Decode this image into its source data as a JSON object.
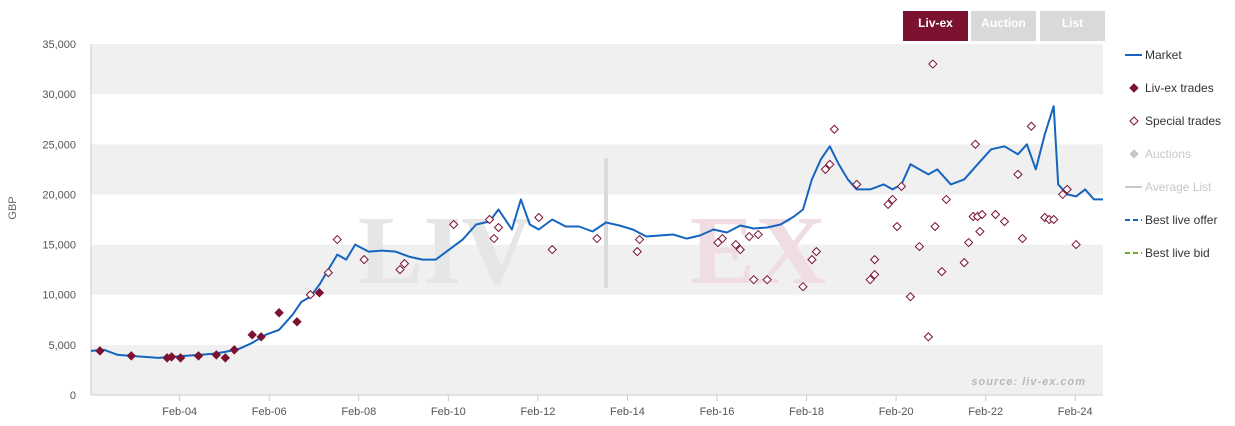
{
  "tabs": [
    {
      "label": "Liv-ex",
      "active": true
    },
    {
      "label": "Auction",
      "active": false
    },
    {
      "label": "List",
      "active": false
    }
  ],
  "watermark": {
    "left": "LIV",
    "right": "EX"
  },
  "source_text": "source: liv-ex.com",
  "colors": {
    "market": "#1565c0",
    "livex_trades": "#7a1230",
    "special_trades": "#7a1230",
    "auctions": "#c8c8c8",
    "average_list": "#c8c8c8",
    "best_live_offer": "#1565c0",
    "best_live_bid": "#6ab023",
    "tab_active": "#7a1230",
    "tab_inactive": "#d9d9d9"
  },
  "chart_data": {
    "type": "line",
    "ylabel": "GBP",
    "y_ticks": [
      0,
      5000,
      10000,
      15000,
      20000,
      25000,
      30000,
      35000
    ],
    "y_tick_labels": [
      "0",
      "5,000",
      "10,000",
      "15,000",
      "20,000",
      "25,000",
      "30,000",
      "35,000"
    ],
    "ylim": [
      0,
      35000
    ],
    "xlim": [
      2002.1,
      2024.7
    ],
    "x_ticks": [
      2004.08,
      2006.08,
      2008.08,
      2010.08,
      2012.08,
      2014.08,
      2016.08,
      2018.08,
      2020.08,
      2022.08,
      2024.08
    ],
    "x_tick_labels": [
      "Feb-04",
      "Feb-06",
      "Feb-08",
      "Feb-10",
      "Feb-12",
      "Feb-14",
      "Feb-16",
      "Feb-18",
      "Feb-20",
      "Feb-22",
      "Feb-24"
    ],
    "grid": "alternating bands",
    "legend": {
      "position": "right",
      "items": [
        {
          "label": "Market",
          "symbol": "line",
          "enabled": true
        },
        {
          "label": "Liv-ex trades",
          "symbol": "diamond-filled",
          "enabled": true
        },
        {
          "label": "Special trades",
          "symbol": "diamond-open",
          "enabled": true
        },
        {
          "label": "Auctions",
          "symbol": "diamond-filled",
          "enabled": false
        },
        {
          "label": "Average List",
          "symbol": "line",
          "enabled": false
        },
        {
          "label": "Best live offer",
          "symbol": "dash",
          "enabled": true
        },
        {
          "label": "Best live bid",
          "symbol": "dash",
          "enabled": true
        }
      ]
    },
    "series": [
      {
        "name": "Market",
        "points": [
          [
            2002.1,
            4400
          ],
          [
            2002.4,
            4500
          ],
          [
            2002.7,
            4000
          ],
          [
            2003.0,
            3900
          ],
          [
            2003.3,
            3800
          ],
          [
            2003.6,
            3700
          ],
          [
            2003.9,
            3800
          ],
          [
            2004.2,
            3900
          ],
          [
            2004.5,
            4000
          ],
          [
            2004.8,
            4100
          ],
          [
            2005.1,
            4300
          ],
          [
            2005.4,
            4600
          ],
          [
            2005.7,
            5200
          ],
          [
            2006.0,
            6000
          ],
          [
            2006.3,
            6500
          ],
          [
            2006.6,
            8000
          ],
          [
            2006.8,
            9300
          ],
          [
            2007.0,
            9800
          ],
          [
            2007.2,
            11000
          ],
          [
            2007.4,
            12500
          ],
          [
            2007.6,
            14000
          ],
          [
            2007.8,
            13500
          ],
          [
            2008.0,
            15000
          ],
          [
            2008.3,
            14300
          ],
          [
            2008.6,
            14400
          ],
          [
            2008.9,
            14300
          ],
          [
            2009.2,
            13800
          ],
          [
            2009.5,
            13500
          ],
          [
            2009.8,
            13500
          ],
          [
            2010.1,
            14500
          ],
          [
            2010.4,
            15500
          ],
          [
            2010.7,
            17000
          ],
          [
            2011.0,
            17300
          ],
          [
            2011.2,
            18500
          ],
          [
            2011.5,
            16500
          ],
          [
            2011.7,
            19500
          ],
          [
            2011.9,
            17000
          ],
          [
            2012.1,
            16500
          ],
          [
            2012.4,
            17500
          ],
          [
            2012.7,
            16800
          ],
          [
            2013.0,
            16800
          ],
          [
            2013.3,
            16300
          ],
          [
            2013.6,
            17200
          ],
          [
            2013.9,
            16900
          ],
          [
            2014.2,
            16500
          ],
          [
            2014.5,
            15800
          ],
          [
            2014.8,
            15900
          ],
          [
            2015.1,
            16000
          ],
          [
            2015.4,
            15600
          ],
          [
            2015.7,
            15900
          ],
          [
            2016.0,
            16500
          ],
          [
            2016.3,
            16200
          ],
          [
            2016.6,
            16900
          ],
          [
            2016.9,
            16600
          ],
          [
            2017.2,
            16700
          ],
          [
            2017.5,
            17000
          ],
          [
            2017.8,
            17800
          ],
          [
            2018.0,
            18500
          ],
          [
            2018.2,
            21500
          ],
          [
            2018.4,
            23500
          ],
          [
            2018.6,
            24800
          ],
          [
            2018.8,
            23000
          ],
          [
            2019.0,
            21500
          ],
          [
            2019.2,
            20500
          ],
          [
            2019.5,
            20500
          ],
          [
            2019.8,
            21000
          ],
          [
            2020.0,
            20500
          ],
          [
            2020.2,
            21000
          ],
          [
            2020.4,
            23000
          ],
          [
            2020.6,
            22500
          ],
          [
            2020.8,
            22000
          ],
          [
            2021.0,
            22500
          ],
          [
            2021.3,
            21000
          ],
          [
            2021.6,
            21500
          ],
          [
            2021.9,
            23000
          ],
          [
            2022.2,
            24500
          ],
          [
            2022.5,
            24800
          ],
          [
            2022.8,
            24000
          ],
          [
            2023.0,
            25000
          ],
          [
            2023.2,
            22500
          ],
          [
            2023.4,
            26000
          ],
          [
            2023.6,
            28800
          ],
          [
            2023.7,
            21000
          ],
          [
            2023.9,
            20000
          ],
          [
            2024.1,
            19800
          ],
          [
            2024.3,
            20500
          ],
          [
            2024.5,
            19500
          ],
          [
            2024.7,
            19500
          ]
        ]
      },
      {
        "name": "Liv-ex trades",
        "points": [
          [
            2002.3,
            4400
          ],
          [
            2003.0,
            3900
          ],
          [
            2003.8,
            3700
          ],
          [
            2003.9,
            3800
          ],
          [
            2004.1,
            3700
          ],
          [
            2004.5,
            3900
          ],
          [
            2004.9,
            4000
          ],
          [
            2005.1,
            3700
          ],
          [
            2005.3,
            4500
          ],
          [
            2005.7,
            6000
          ],
          [
            2005.9,
            5800
          ],
          [
            2006.3,
            8200
          ],
          [
            2006.7,
            7300
          ],
          [
            2007.2,
            10200
          ]
        ]
      },
      {
        "name": "Special trades",
        "points": [
          [
            2007.0,
            10000
          ],
          [
            2007.4,
            12200
          ],
          [
            2007.6,
            15500
          ],
          [
            2008.2,
            13500
          ],
          [
            2009.0,
            12500
          ],
          [
            2009.1,
            13100
          ],
          [
            2010.2,
            17000
          ],
          [
            2011.0,
            17500
          ],
          [
            2011.1,
            15600
          ],
          [
            2011.2,
            16700
          ],
          [
            2012.1,
            17700
          ],
          [
            2012.4,
            14500
          ],
          [
            2013.4,
            15600
          ],
          [
            2014.3,
            14300
          ],
          [
            2014.35,
            15500
          ],
          [
            2016.1,
            15200
          ],
          [
            2016.2,
            15600
          ],
          [
            2016.5,
            15000
          ],
          [
            2016.6,
            14500
          ],
          [
            2016.8,
            15800
          ],
          [
            2016.9,
            11500
          ],
          [
            2017.0,
            16000
          ],
          [
            2017.2,
            11500
          ],
          [
            2018.0,
            10800
          ],
          [
            2018.2,
            13500
          ],
          [
            2018.3,
            14300
          ],
          [
            2018.5,
            22500
          ],
          [
            2018.6,
            23000
          ],
          [
            2018.7,
            26500
          ],
          [
            2019.2,
            21000
          ],
          [
            2019.5,
            11500
          ],
          [
            2019.6,
            12000
          ],
          [
            2019.6,
            13500
          ],
          [
            2019.9,
            19000
          ],
          [
            2020.0,
            19500
          ],
          [
            2020.1,
            16800
          ],
          [
            2020.2,
            20800
          ],
          [
            2020.4,
            9800
          ],
          [
            2020.6,
            14800
          ],
          [
            2020.8,
            5800
          ],
          [
            2020.9,
            33000
          ],
          [
            2020.95,
            16800
          ],
          [
            2021.1,
            12300
          ],
          [
            2021.2,
            19500
          ],
          [
            2021.6,
            13200
          ],
          [
            2021.7,
            15200
          ],
          [
            2021.8,
            17800
          ],
          [
            2021.85,
            25000
          ],
          [
            2021.9,
            17800
          ],
          [
            2021.95,
            16300
          ],
          [
            2022.0,
            18000
          ],
          [
            2022.3,
            18000
          ],
          [
            2022.5,
            17300
          ],
          [
            2022.8,
            22000
          ],
          [
            2022.9,
            15600
          ],
          [
            2023.1,
            26800
          ],
          [
            2023.4,
            17700
          ],
          [
            2023.5,
            17500
          ],
          [
            2023.6,
            17500
          ],
          [
            2023.8,
            20000
          ],
          [
            2023.9,
            20500
          ],
          [
            2024.1,
            15000
          ]
        ]
      }
    ]
  }
}
